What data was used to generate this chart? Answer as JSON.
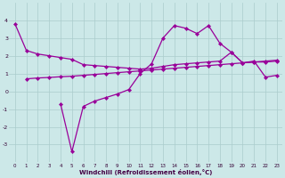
{
  "xlabel": "Windchill (Refroidissement éolien,°C)",
  "x": [
    0,
    1,
    2,
    3,
    4,
    5,
    6,
    7,
    8,
    9,
    10,
    11,
    12,
    13,
    14,
    15,
    16,
    17,
    18,
    19,
    20,
    21,
    22,
    23
  ],
  "y_top": [
    3.8,
    2.3,
    2.1,
    2.0,
    1.9,
    1.8,
    1.5,
    1.45,
    1.4,
    1.35,
    1.3,
    1.25,
    1.3,
    1.4,
    1.5,
    1.55,
    1.6,
    1.65,
    1.7,
    2.2,
    1.6,
    1.65,
    1.65,
    1.7
  ],
  "y_mid": [
    null,
    null,
    null,
    null,
    -0.7,
    -3.4,
    -0.85,
    -0.55,
    -0.35,
    -0.15,
    0.1,
    1.0,
    1.55,
    3.0,
    3.7,
    3.55,
    3.25,
    3.7,
    2.7,
    2.2,
    1.6,
    1.7,
    0.8,
    0.9
  ],
  "y_bot": [
    null,
    0.7,
    0.75,
    0.78,
    0.82,
    0.85,
    0.9,
    0.95,
    1.0,
    1.05,
    1.1,
    1.15,
    1.2,
    1.25,
    1.3,
    1.35,
    1.4,
    1.45,
    1.5,
    1.55,
    1.6,
    1.65,
    1.7,
    1.75
  ],
  "ylim": [
    -4,
    5
  ],
  "yticks": [
    -3,
    -2,
    -1,
    0,
    1,
    2,
    3,
    4
  ],
  "color": "#990099",
  "bg_color": "#cce8e8",
  "grid_color": "#aacccc",
  "figsize": [
    3.2,
    2.0
  ],
  "dpi": 100,
  "lw": 0.9,
  "markersize": 2.2
}
